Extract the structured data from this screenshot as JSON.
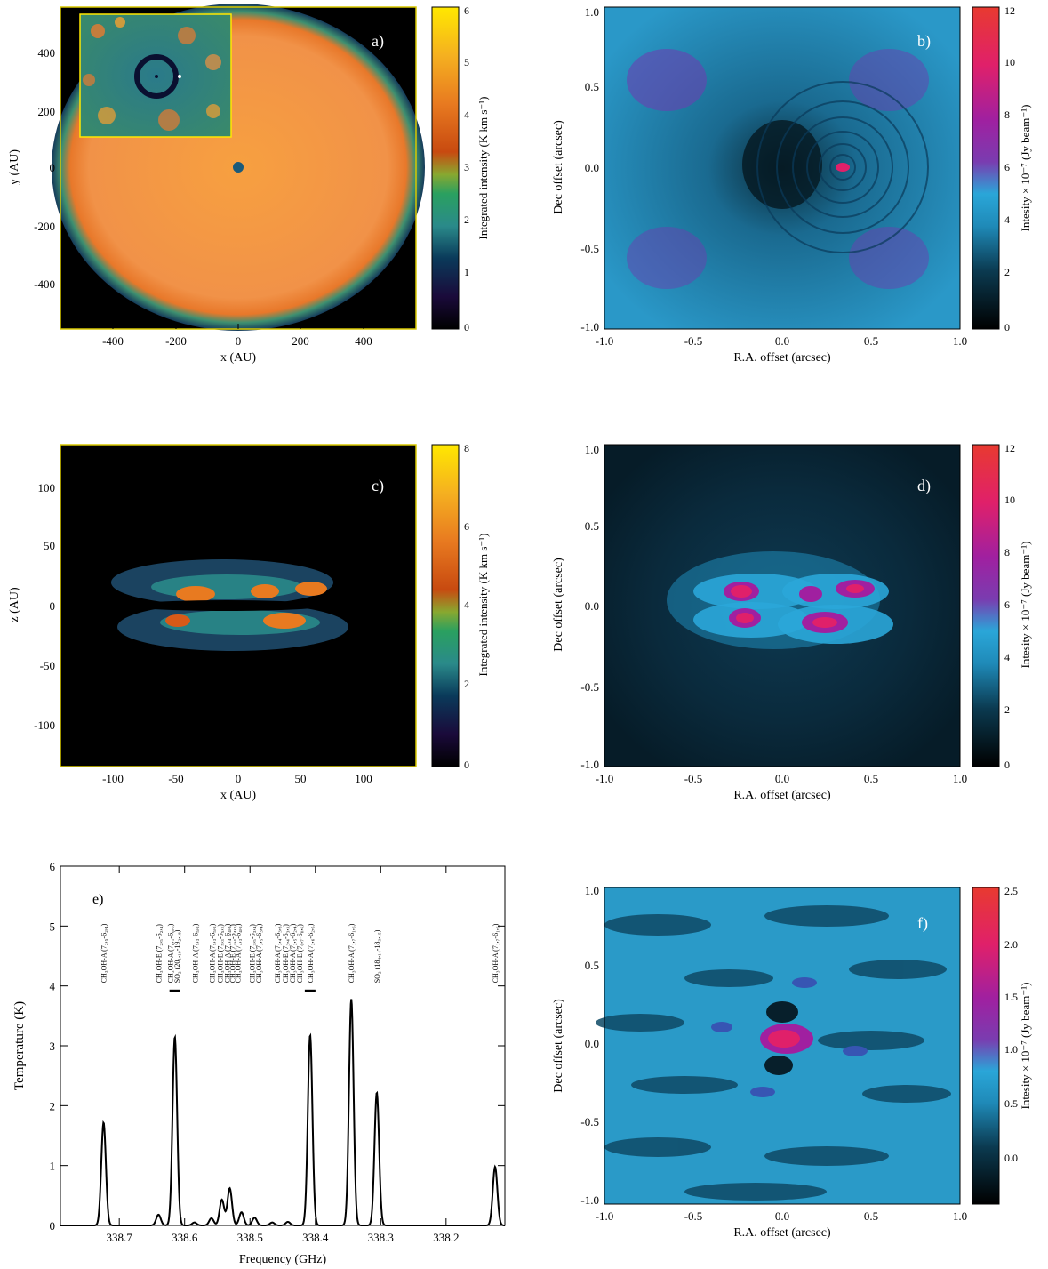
{
  "panels": {
    "a": {
      "label": "a)",
      "xlabel": "x (AU)",
      "ylabel": "y (AU)",
      "xticks": [
        "-400",
        "-200",
        "0",
        "200",
        "400"
      ],
      "yticks": [
        "400",
        "200",
        "0",
        "-200",
        "-400"
      ],
      "cbar_label": "Integrated intensity (K km s⁻¹)",
      "cbar_ticks": [
        "6",
        "5",
        "4",
        "3",
        "2",
        "1",
        "0"
      ],
      "colormap": [
        "#000000",
        "#1a0a3a",
        "#0a5a6a",
        "#2a8a7a",
        "#4aa060",
        "#c85018",
        "#e87a20",
        "#f5c020",
        "#ffe800"
      ]
    },
    "b": {
      "label": "b)",
      "xlabel": "R.A. offset (arcsec)",
      "ylabel": "Dec offset (arcsec)",
      "xticks": [
        "-1.0",
        "-0.5",
        "0.0",
        "0.5",
        "1.0"
      ],
      "yticks": [
        "1.0",
        "0.5",
        "0.0",
        "-0.5",
        "-1.0"
      ],
      "cbar_label": "Intesity × 10⁻⁷ (Jy beam⁻¹)",
      "cbar_ticks": [
        "12",
        "10",
        "8",
        "6",
        "4",
        "2",
        "0"
      ],
      "colormap": [
        "#000000",
        "#0b3a50",
        "#1f8ab8",
        "#2aa6d8",
        "#7a3cb0",
        "#a020a0",
        "#e0206a",
        "#e83a30"
      ]
    },
    "c": {
      "label": "c)",
      "xlabel": "x (AU)",
      "ylabel": "z (AU)",
      "xticks": [
        "-100",
        "-50",
        "0",
        "50",
        "100"
      ],
      "yticks": [
        "100",
        "50",
        "0",
        "-50",
        "-100"
      ],
      "cbar_label": "Integrated intensity (K km s⁻¹)",
      "cbar_ticks": [
        "8",
        "6",
        "4",
        "2",
        "0"
      ]
    },
    "d": {
      "label": "d)",
      "xlabel": "R.A. offset (arcsec)",
      "ylabel": "Dec offset (arcsec)",
      "xticks": [
        "-1.0",
        "-0.5",
        "0.0",
        "0.5",
        "1.0"
      ],
      "yticks": [
        "1.0",
        "0.5",
        "0.0",
        "-0.5",
        "-1.0"
      ],
      "cbar_label": "Intesity × 10⁻⁷ (Jy beam⁻¹)",
      "cbar_ticks": [
        "12",
        "10",
        "8",
        "6",
        "4",
        "2",
        "0"
      ]
    },
    "f": {
      "label": "f)",
      "xlabel": "R.A. offset (arcsec)",
      "ylabel": "Dec offset (arcsec)",
      "xticks": [
        "-1.0",
        "-0.5",
        "0.0",
        "0.5",
        "1.0"
      ],
      "yticks": [
        "1.0",
        "0.5",
        "0.0",
        "-0.5",
        "-1.0"
      ],
      "cbar_label": "Intesity × 10⁻⁷ (Jy beam⁻¹)",
      "cbar_ticks": [
        "2.5",
        "2.0",
        "1.5",
        "1.0",
        "0.5",
        "0.0"
      ]
    }
  },
  "chart_data": {
    "type": "line",
    "label": "e)",
    "xlabel": "Frequency (GHz)",
    "ylabel": "Temperature (K)",
    "xlim": [
      338.79,
      338.11
    ],
    "ylim": [
      0,
      6
    ],
    "xticks": [
      "338.7",
      "338.6",
      "338.5",
      "338.4",
      "338.3",
      "338.2"
    ],
    "yticks": [
      "6",
      "5",
      "4",
      "3",
      "2",
      "1",
      "0"
    ],
    "peaks": [
      {
        "freq": 338.724,
        "height": 1.72
      },
      {
        "freq": 338.64,
        "height": 0.18
      },
      {
        "freq": 338.615,
        "height": 3.15
      },
      {
        "freq": 338.585,
        "height": 0.05
      },
      {
        "freq": 338.559,
        "height": 0.12
      },
      {
        "freq": 338.543,
        "height": 0.43
      },
      {
        "freq": 338.531,
        "height": 0.62
      },
      {
        "freq": 338.513,
        "height": 0.22
      },
      {
        "freq": 338.493,
        "height": 0.13
      },
      {
        "freq": 338.466,
        "height": 0.05
      },
      {
        "freq": 338.442,
        "height": 0.06
      },
      {
        "freq": 338.408,
        "height": 3.18
      },
      {
        "freq": 338.345,
        "height": 3.78
      },
      {
        "freq": 338.306,
        "height": 2.22
      },
      {
        "freq": 338.125,
        "height": 0.98
      }
    ],
    "line_labels": [
      {
        "freq": 338.724,
        "text": "CH₃OH-A (7₂,₅-6₂,₄)"
      },
      {
        "freq": 338.64,
        "text": "CH₃OH-E (7₂,₅-6₂,₄)"
      },
      {
        "freq": 338.622,
        "text": "CH₃OH-A (7₆,₁-6₆,₀)"
      },
      {
        "freq": 338.612,
        "text": "SO₂ (20₁,₁₉-19₂,₁₈)"
      },
      {
        "freq": 338.584,
        "text": "CH₃OH-A (7₅,₃-6₅,₂)"
      },
      {
        "freq": 338.558,
        "text": "CH₃OH-A (7₅,₃-6₅,₂)"
      },
      {
        "freq": 338.546,
        "text": "CH₃OH-E (7₅,₃-6₅,₂)"
      },
      {
        "freq": 338.535,
        "text": "CH₃OH-A (7₄,₄-6₄,₃)"
      },
      {
        "freq": 338.527,
        "text": "CH₃OH-E (7₄,₄-6₄,₃)"
      },
      {
        "freq": 338.519,
        "text": "CH₃OH-A (7₄,₃-6₄,₂)"
      },
      {
        "freq": 338.497,
        "text": "CH₃OH-E (7₃,₅-6₃,₄)"
      },
      {
        "freq": 338.487,
        "text": "CH₃OH-A (7₃,₅-6₃,₄)"
      },
      {
        "freq": 338.458,
        "text": "CH₃OH-A (7₃,₄-6₃,₃)"
      },
      {
        "freq": 338.446,
        "text": "CH₃OH-E (7₃,₄-6₃,₃)"
      },
      {
        "freq": 338.435,
        "text": "CH₃OH-A (7₂,₅-6₂,₄)"
      },
      {
        "freq": 338.424,
        "text": "CH₃OH-E (7₀,₇-6₀,₆)"
      },
      {
        "freq": 338.408,
        "text": "CH₃OH-A (7₂,₆-6₂,₅)"
      },
      {
        "freq": 338.345,
        "text": "CH₃OH-A (7₁,₇-6₁,₆)"
      },
      {
        "freq": 338.306,
        "text": "SO₂ (18₄,₁₄-18₃,₁₅)"
      },
      {
        "freq": 338.125,
        "text": "CH₃OH-A (7₁,₇-6₁,₆)"
      }
    ],
    "bars": [
      338.615,
      338.408
    ]
  }
}
